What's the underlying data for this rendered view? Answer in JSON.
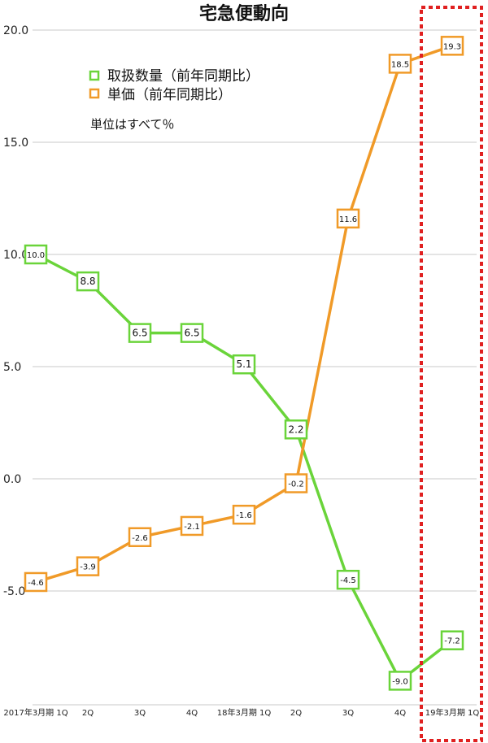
{
  "chart_data": {
    "type": "line",
    "title": "宅急便動向",
    "categories": [
      "2017年3月期 1Q",
      "2Q",
      "3Q",
      "4Q",
      "18年3月期 1Q",
      "2Q",
      "3Q",
      "4Q",
      "19年3月期 1Q"
    ],
    "series": [
      {
        "name": "取扱数量（前年同期比）",
        "color": "#6ad43a",
        "values": [
          10.0,
          8.8,
          6.5,
          6.5,
          5.1,
          2.2,
          -4.5,
          -9.0,
          -7.2
        ],
        "labels": [
          "10.0",
          "8.8",
          "6.5",
          "6.5",
          "5.1",
          "2.2",
          "-4.5",
          "-9.0",
          "-7.2"
        ]
      },
      {
        "name": "単価（前年同期比）",
        "color": "#f09a28",
        "values": [
          -4.6,
          -3.9,
          -2.6,
          -2.1,
          -1.6,
          -0.2,
          11.6,
          18.5,
          19.3
        ],
        "labels": [
          "-4.6",
          "-3.9",
          "-2.6",
          "-2.1",
          "-1.6",
          "-0.2",
          "11.6",
          "18.5",
          "19.3"
        ]
      }
    ],
    "ylim": [
      -10,
      20
    ],
    "yticks": [
      "20.0",
      "15.0",
      "10.0",
      "5.0",
      "0.0",
      "-5.0"
    ],
    "ytick_values": [
      20,
      15,
      10,
      5,
      0,
      -5
    ],
    "grid": true,
    "note": "単位はすべて％",
    "highlight_color": "#e02020"
  }
}
